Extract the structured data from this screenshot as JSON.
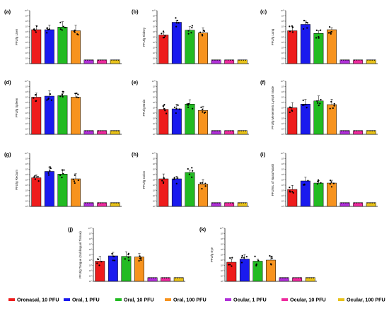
{
  "legend": {
    "items": [
      {
        "label": "Oronasal, 10 PFU",
        "color": "#ee1c1c"
      },
      {
        "label": "Oral, 1 PFU",
        "color": "#1a1aee"
      },
      {
        "label": "Oral, 10 PFU",
        "color": "#22bb22"
      },
      {
        "label": "Oral, 100 PFU",
        "color": "#f7931e"
      },
      {
        "label": "Ocular, 1 PFU",
        "color": "#b030d8"
      },
      {
        "label": "Ocular, 10 PFU",
        "color": "#ee2b9e"
      },
      {
        "label": "Ocular, 100 PFU",
        "color": "#e8c21a"
      }
    ]
  },
  "chart_data": [
    {
      "type": "bar",
      "panel": "(a)",
      "ylabel": "PFU/g Liver",
      "ylim_log10": [
        0,
        10
      ],
      "values_log10": [
        6.4,
        6.4,
        6.9,
        6.2,
        0.7,
        0.7,
        0.7
      ],
      "grid": false
    },
    {
      "type": "bar",
      "panel": "(b)",
      "ylabel": "PFU/g Kidney",
      "ylim_log10": [
        0,
        10
      ],
      "values_log10": [
        5.4,
        7.8,
        6.3,
        5.8,
        0.7,
        0.7,
        0.7
      ],
      "grid": false
    },
    {
      "type": "bar",
      "panel": "(c)",
      "ylabel": "PFU/g Lung",
      "ylim_log10": [
        0,
        10
      ],
      "values_log10": [
        6.2,
        7.4,
        5.7,
        6.4,
        0.7,
        0.7,
        0.7
      ],
      "grid": false
    },
    {
      "type": "bar",
      "panel": "(d)",
      "ylabel": "PFU/g Spleen",
      "ylim_log10": [
        0,
        10
      ],
      "values_log10": [
        7.0,
        7.2,
        7.3,
        7.0,
        0.7,
        0.7,
        0.7
      ],
      "grid": false
    },
    {
      "type": "bar",
      "panel": "(e)",
      "ylabel": "PFU/g Brain",
      "ylim_log10": [
        0,
        10
      ],
      "values_log10": [
        4.7,
        4.8,
        5.7,
        4.5,
        0.7,
        0.7,
        0.7
      ],
      "grid": false
    },
    {
      "type": "bar",
      "panel": "(f)",
      "ylabel": "PFU/g Mesenteric Lymph Node",
      "ylim_log10": [
        0,
        10
      ],
      "values_log10": [
        5.0,
        5.7,
        6.3,
        5.6,
        0.7,
        0.7,
        0.7
      ],
      "grid": false
    },
    {
      "type": "bar",
      "panel": "(g)",
      "ylabel": "PFU/g Rectum",
      "ylim_log10": [
        0,
        10
      ],
      "values_log10": [
        5.4,
        6.6,
        6.1,
        5.2,
        0.7,
        0.7,
        0.7
      ],
      "grid": false
    },
    {
      "type": "bar",
      "panel": "(h)",
      "ylabel": "PFU/g Colon",
      "ylim_log10": [
        0,
        10
      ],
      "values_log10": [
        5.2,
        5.2,
        6.4,
        4.2,
        0.7,
        0.7,
        0.7
      ],
      "grid": false
    },
    {
      "type": "bar",
      "panel": "(i)",
      "ylabel": "PFU/mL of Nasal Wash",
      "ylim_log10": [
        0,
        10
      ],
      "values_log10": [
        3.2,
        4.8,
        4.4,
        4.4,
        0.7,
        0.7,
        0.7
      ],
      "grid": false
    },
    {
      "type": "bar",
      "panel": "(j)",
      "ylabel": "PFU/g Tongue (Sublingual Tissue)",
      "ylim_log10": [
        0,
        10
      ],
      "values_log10": [
        3.8,
        4.8,
        4.7,
        4.6,
        0.7,
        0.7,
        0.7
      ],
      "grid": false
    },
    {
      "type": "bar",
      "panel": "(k)",
      "ylabel": "PFU/g Eye",
      "ylim_log10": [
        0,
        10
      ],
      "values_log10": [
        3.6,
        4.2,
        3.8,
        4.0,
        0.7,
        0.7,
        0.7
      ],
      "grid": false
    }
  ]
}
